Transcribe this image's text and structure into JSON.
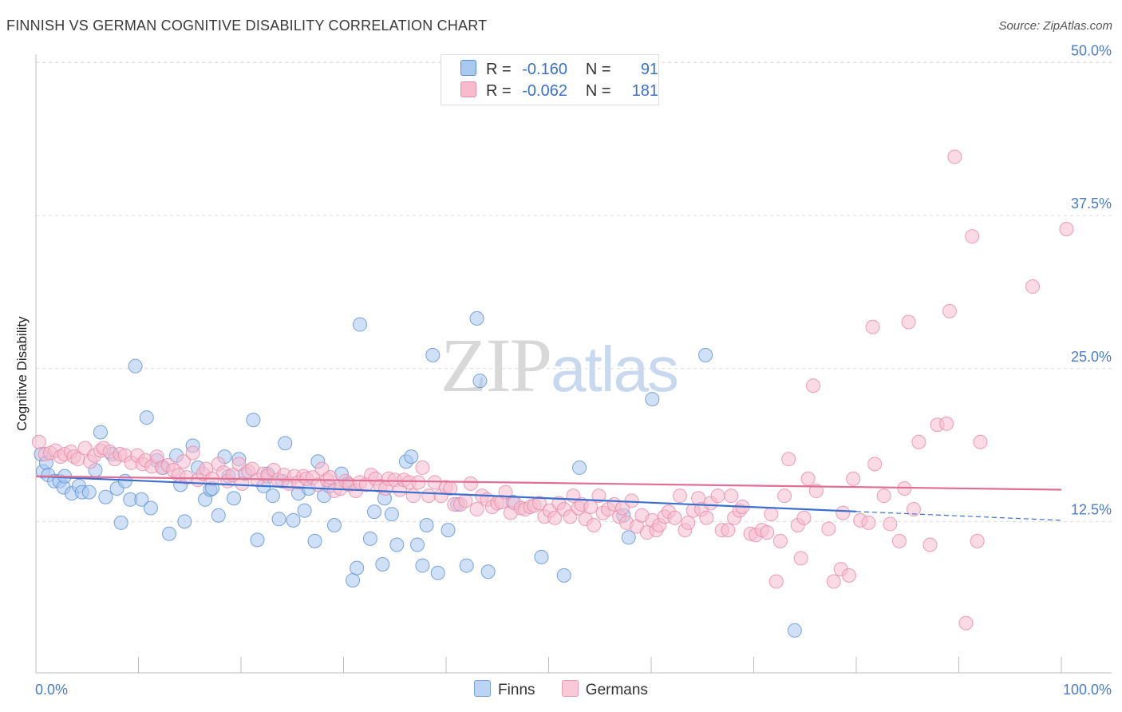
{
  "title": "FINNISH VS GERMAN COGNITIVE DISABILITY CORRELATION CHART",
  "source": "Source: ZipAtlas.com",
  "watermark": {
    "zip": "ZIP",
    "atlas": "atlas"
  },
  "legend_top": {
    "r_label": "R =",
    "n_label": "N =",
    "rows": [
      {
        "r": "-0.160",
        "n": "91",
        "color": "#a9c8f0",
        "edge": "#5b8fd6"
      },
      {
        "r": "-0.062",
        "n": "181",
        "color": "#f6bccd",
        "edge": "#e68aa8"
      }
    ]
  },
  "legend_bottom": [
    "Finns",
    "Germans"
  ],
  "chart_data": {
    "type": "scatter",
    "title": "FINNISH VS GERMAN COGNITIVE DISABILITY CORRELATION CHART",
    "xlabel": "",
    "ylabel": "Cognitive Disability",
    "xlim": [
      0,
      100
    ],
    "ylim": [
      0,
      50
    ],
    "x_tick_labels": [
      "0.0%",
      "100.0%"
    ],
    "y_ticks": [
      12.5,
      25.0,
      37.5,
      50.0
    ],
    "y_tick_labels": [
      "12.5%",
      "25.0%",
      "37.5%",
      "50.0%"
    ],
    "grid": true,
    "legend_position": "top-center",
    "series": [
      {
        "name": "Finns",
        "color": "#a9c8f0",
        "edge": "#5b8fd6",
        "line_color": "#3a6fd0",
        "trend": {
          "x0": 0,
          "y0": 16.2,
          "x1": 100,
          "y1": 12.6,
          "solid_until": 80
        },
        "points": [
          [
            0.5,
            18.0
          ],
          [
            0.7,
            16.6
          ],
          [
            1.0,
            17.3
          ],
          [
            1.2,
            16.3
          ],
          [
            1.8,
            15.8
          ],
          [
            2.3,
            15.8
          ],
          [
            2.7,
            15.3
          ],
          [
            2.8,
            16.2
          ],
          [
            3.5,
            14.8
          ],
          [
            4.2,
            15.4
          ],
          [
            4.5,
            14.9
          ],
          [
            5.2,
            14.9
          ],
          [
            5.8,
            16.7
          ],
          [
            6.3,
            19.8
          ],
          [
            6.8,
            14.5
          ],
          [
            7.4,
            18.0
          ],
          [
            7.9,
            15.2
          ],
          [
            8.3,
            12.4
          ],
          [
            8.7,
            15.8
          ],
          [
            9.2,
            14.3
          ],
          [
            9.7,
            25.2
          ],
          [
            10.3,
            14.3
          ],
          [
            10.8,
            21.0
          ],
          [
            11.2,
            13.6
          ],
          [
            11.8,
            17.5
          ],
          [
            12.4,
            16.9
          ],
          [
            13.0,
            11.5
          ],
          [
            13.7,
            17.9
          ],
          [
            14.1,
            15.5
          ],
          [
            14.5,
            12.5
          ],
          [
            15.3,
            18.7
          ],
          [
            15.8,
            16.9
          ],
          [
            16.5,
            14.3
          ],
          [
            17.0,
            15.1
          ],
          [
            17.2,
            15.2
          ],
          [
            17.8,
            13.0
          ],
          [
            18.4,
            17.8
          ],
          [
            18.8,
            16.2
          ],
          [
            19.3,
            14.4
          ],
          [
            19.8,
            17.6
          ],
          [
            20.4,
            16.4
          ],
          [
            21.2,
            20.8
          ],
          [
            21.6,
            11.0
          ],
          [
            22.2,
            15.4
          ],
          [
            22.6,
            16.4
          ],
          [
            23.1,
            14.6
          ],
          [
            23.7,
            12.7
          ],
          [
            24.0,
            15.8
          ],
          [
            24.3,
            18.9
          ],
          [
            25.1,
            12.6
          ],
          [
            25.6,
            14.8
          ],
          [
            26.2,
            13.4
          ],
          [
            26.6,
            15.2
          ],
          [
            27.2,
            10.9
          ],
          [
            27.5,
            17.4
          ],
          [
            28.1,
            14.6
          ],
          [
            28.6,
            15.4
          ],
          [
            29.1,
            12.2
          ],
          [
            29.8,
            16.4
          ],
          [
            30.4,
            15.6
          ],
          [
            30.9,
            7.7
          ],
          [
            31.3,
            8.7
          ],
          [
            31.6,
            28.6
          ],
          [
            32.6,
            11.1
          ],
          [
            33.0,
            13.3
          ],
          [
            33.8,
            9.0
          ],
          [
            34.0,
            14.4
          ],
          [
            34.7,
            13.1
          ],
          [
            35.2,
            10.6
          ],
          [
            36.1,
            17.4
          ],
          [
            36.6,
            17.8
          ],
          [
            37.2,
            10.6
          ],
          [
            37.7,
            8.9
          ],
          [
            38.1,
            12.2
          ],
          [
            38.7,
            26.1
          ],
          [
            39.2,
            8.3
          ],
          [
            40.2,
            11.8
          ],
          [
            41.1,
            13.9
          ],
          [
            42.0,
            8.9
          ],
          [
            43.0,
            29.1
          ],
          [
            43.3,
            24.0
          ],
          [
            44.1,
            8.4
          ],
          [
            46.5,
            14.1
          ],
          [
            49.3,
            9.6
          ],
          [
            51.5,
            8.1
          ],
          [
            53.0,
            16.9
          ],
          [
            57.3,
            13.0
          ],
          [
            57.8,
            11.2
          ],
          [
            60.1,
            22.5
          ],
          [
            65.3,
            26.1
          ],
          [
            74.0,
            3.6
          ]
        ]
      },
      {
        "name": "Germans",
        "color": "#f6bccd",
        "edge": "#e68aa8",
        "line_color": "#e06e95",
        "trend": {
          "x0": 0,
          "y0": 16.2,
          "x1": 100,
          "y1": 15.1
        },
        "points": [
          [
            0.3,
            19.0
          ],
          [
            0.9,
            18.0
          ],
          [
            1.4,
            18.1
          ],
          [
            1.9,
            18.3
          ],
          [
            2.4,
            17.8
          ],
          [
            2.8,
            18.0
          ],
          [
            3.4,
            18.2
          ],
          [
            3.7,
            17.8
          ],
          [
            4.1,
            17.6
          ],
          [
            4.8,
            18.5
          ],
          [
            5.3,
            17.4
          ],
          [
            5.7,
            17.9
          ],
          [
            6.3,
            18.3
          ],
          [
            6.6,
            18.5
          ],
          [
            7.2,
            18.2
          ],
          [
            7.7,
            17.6
          ],
          [
            8.2,
            18.0
          ],
          [
            8.7,
            17.9
          ],
          [
            9.3,
            17.3
          ],
          [
            9.9,
            17.9
          ],
          [
            10.4,
            17.2
          ],
          [
            10.7,
            17.5
          ],
          [
            11.3,
            17.0
          ],
          [
            11.8,
            17.8
          ],
          [
            12.3,
            16.9
          ],
          [
            12.9,
            17.1
          ],
          [
            13.4,
            16.7
          ],
          [
            13.9,
            16.3
          ],
          [
            14.4,
            17.4
          ],
          [
            14.7,
            16.1
          ],
          [
            15.3,
            18.1
          ],
          [
            15.8,
            15.9
          ],
          [
            16.3,
            16.4
          ],
          [
            16.6,
            16.8
          ],
          [
            17.2,
            16.0
          ],
          [
            17.8,
            17.2
          ],
          [
            18.3,
            16.5
          ],
          [
            18.7,
            15.8
          ],
          [
            19.2,
            16.3
          ],
          [
            19.8,
            17.2
          ],
          [
            20.1,
            15.6
          ],
          [
            20.7,
            16.6
          ],
          [
            21.1,
            16.8
          ],
          [
            21.6,
            15.9
          ],
          [
            22.2,
            16.4
          ],
          [
            22.6,
            16.2
          ],
          [
            23.2,
            16.7
          ],
          [
            23.6,
            15.9
          ],
          [
            24.2,
            16.3
          ],
          [
            24.7,
            15.6
          ],
          [
            25.2,
            16.2
          ],
          [
            25.6,
            15.7
          ],
          [
            26.1,
            16.2
          ],
          [
            26.4,
            16.0
          ],
          [
            27.0,
            16.1
          ],
          [
            27.5,
            15.5
          ],
          [
            27.9,
            16.8
          ],
          [
            28.4,
            15.9
          ],
          [
            28.7,
            16.1
          ],
          [
            29.1,
            15.0
          ],
          [
            29.7,
            15.2
          ],
          [
            30.2,
            15.8
          ],
          [
            30.6,
            15.5
          ],
          [
            31.2,
            15.0
          ],
          [
            31.6,
            15.7
          ],
          [
            32.2,
            15.5
          ],
          [
            32.7,
            16.3
          ],
          [
            33.1,
            16.0
          ],
          [
            33.6,
            15.4
          ],
          [
            34.1,
            15.2
          ],
          [
            34.4,
            16.0
          ],
          [
            35.0,
            15.9
          ],
          [
            35.5,
            15.1
          ],
          [
            35.9,
            15.9
          ],
          [
            36.4,
            15.7
          ],
          [
            36.8,
            14.6
          ],
          [
            37.3,
            15.7
          ],
          [
            37.7,
            16.9
          ],
          [
            38.3,
            14.6
          ],
          [
            38.9,
            15.7
          ],
          [
            39.5,
            14.6
          ],
          [
            40.0,
            15.3
          ],
          [
            40.4,
            15.2
          ],
          [
            40.8,
            13.9
          ],
          [
            41.4,
            13.9
          ],
          [
            41.9,
            14.2
          ],
          [
            42.4,
            15.6
          ],
          [
            43.0,
            13.5
          ],
          [
            43.5,
            14.6
          ],
          [
            44.0,
            14.3
          ],
          [
            44.5,
            13.7
          ],
          [
            45.0,
            14.0
          ],
          [
            45.4,
            14.1
          ],
          [
            45.8,
            14.9
          ],
          [
            46.3,
            13.2
          ],
          [
            46.7,
            14.0
          ],
          [
            47.3,
            13.6
          ],
          [
            47.7,
            13.5
          ],
          [
            48.2,
            13.7
          ],
          [
            48.6,
            13.8
          ],
          [
            49.1,
            14.0
          ],
          [
            49.6,
            12.9
          ],
          [
            50.1,
            13.4
          ],
          [
            50.6,
            12.8
          ],
          [
            51.0,
            14.0
          ],
          [
            51.5,
            13.5
          ],
          [
            52.1,
            12.9
          ],
          [
            52.4,
            14.6
          ],
          [
            52.9,
            13.6
          ],
          [
            53.2,
            13.9
          ],
          [
            53.6,
            12.7
          ],
          [
            54.1,
            13.7
          ],
          [
            54.4,
            12.2
          ],
          [
            54.9,
            14.6
          ],
          [
            55.3,
            13.2
          ],
          [
            55.8,
            13.5
          ],
          [
            56.4,
            13.9
          ],
          [
            56.9,
            12.9
          ],
          [
            57.2,
            13.6
          ],
          [
            57.6,
            12.4
          ],
          [
            58.1,
            14.2
          ],
          [
            58.6,
            12.1
          ],
          [
            59.1,
            13.0
          ],
          [
            59.6,
            11.6
          ],
          [
            60.1,
            12.6
          ],
          [
            60.5,
            11.8
          ],
          [
            60.8,
            12.2
          ],
          [
            61.3,
            12.9
          ],
          [
            61.7,
            13.3
          ],
          [
            62.3,
            12.8
          ],
          [
            62.8,
            14.6
          ],
          [
            63.3,
            11.8
          ],
          [
            63.6,
            12.4
          ],
          [
            64.1,
            13.4
          ],
          [
            64.6,
            14.4
          ],
          [
            64.9,
            13.5
          ],
          [
            65.4,
            12.8
          ],
          [
            65.8,
            14.0
          ],
          [
            66.5,
            14.6
          ],
          [
            66.9,
            11.8
          ],
          [
            67.5,
            11.8
          ],
          [
            67.8,
            14.6
          ],
          [
            68.1,
            12.8
          ],
          [
            68.6,
            13.4
          ],
          [
            68.9,
            13.7
          ],
          [
            69.7,
            11.5
          ],
          [
            70.2,
            11.4
          ],
          [
            70.8,
            11.8
          ],
          [
            71.3,
            11.6
          ],
          [
            71.7,
            13.1
          ],
          [
            72.2,
            7.6
          ],
          [
            72.6,
            10.9
          ],
          [
            73.0,
            14.6
          ],
          [
            73.4,
            17.6
          ],
          [
            74.3,
            12.2
          ],
          [
            74.6,
            9.5
          ],
          [
            74.9,
            12.8
          ],
          [
            75.3,
            16.0
          ],
          [
            75.8,
            23.6
          ],
          [
            76.1,
            15.0
          ],
          [
            77.3,
            11.9
          ],
          [
            77.8,
            7.6
          ],
          [
            78.5,
            8.6
          ],
          [
            78.7,
            13.2
          ],
          [
            79.3,
            8.1
          ],
          [
            79.7,
            16.0
          ],
          [
            80.4,
            12.6
          ],
          [
            81.2,
            12.4
          ],
          [
            81.6,
            28.4
          ],
          [
            81.8,
            17.2
          ],
          [
            82.7,
            14.6
          ],
          [
            83.3,
            12.3
          ],
          [
            84.2,
            10.9
          ],
          [
            84.7,
            15.2
          ],
          [
            85.1,
            28.8
          ],
          [
            85.6,
            13.5
          ],
          [
            86.1,
            19.0
          ],
          [
            87.2,
            10.6
          ],
          [
            87.9,
            20.4
          ],
          [
            88.8,
            20.5
          ],
          [
            89.1,
            29.7
          ],
          [
            89.6,
            42.3
          ],
          [
            90.7,
            4.2
          ],
          [
            91.3,
            35.8
          ],
          [
            91.8,
            10.9
          ],
          [
            92.1,
            19.0
          ],
          [
            97.2,
            31.7
          ],
          [
            100.5,
            36.4
          ]
        ]
      }
    ]
  }
}
